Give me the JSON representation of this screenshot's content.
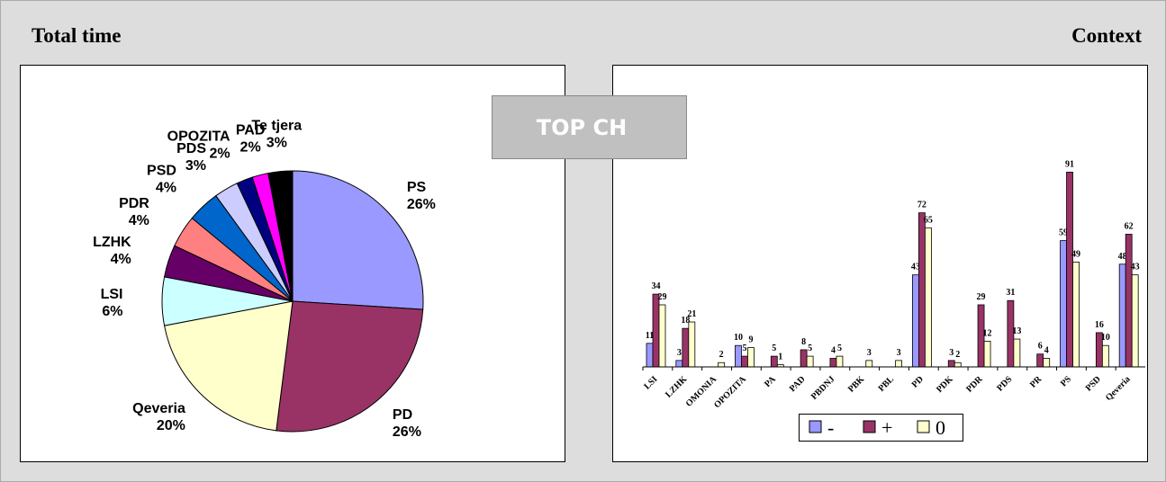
{
  "header": {
    "left": "Total time",
    "right": "Context",
    "badge": "TOP CH"
  },
  "chart_data": [
    {
      "type": "pie",
      "categories": [
        "PS",
        "PD",
        "Qeveria",
        "LSI",
        "LZHK",
        "PDR",
        "PSD",
        "PDS",
        "OPOZITA",
        "PAD",
        "Te tjera"
      ],
      "values": [
        26,
        26,
        20,
        6,
        4,
        4,
        4,
        3,
        2,
        2,
        3
      ],
      "value_labels": [
        "26%",
        "26%",
        "20%",
        "6%",
        "4%",
        "4%",
        "4%",
        "3%",
        "2%",
        "2%",
        "3%"
      ],
      "colors": [
        "#9999ff",
        "#993366",
        "#ffffcc",
        "#ccffff",
        "#660066",
        "#ff8080",
        "#0066cc",
        "#ccccff",
        "#000080",
        "#ff00ff",
        "#000000"
      ]
    },
    {
      "type": "bar",
      "categories": [
        "LSI",
        "LZHK",
        "OMONIA",
        "OPOZITA",
        "PA",
        "PAD",
        "PBDNJ",
        "PBK",
        "PBL",
        "PD",
        "PDK",
        "PDR",
        "PDS",
        "PR",
        "PS",
        "PSD",
        "Qeveria"
      ],
      "series": [
        {
          "name": "-",
          "color": "#9999ff",
          "values": [
            11,
            3,
            null,
            10,
            null,
            null,
            null,
            null,
            null,
            43,
            null,
            null,
            null,
            null,
            59,
            null,
            48
          ]
        },
        {
          "name": "+",
          "color": "#993366",
          "values": [
            34,
            18,
            null,
            5,
            5,
            8,
            4,
            null,
            null,
            72,
            3,
            29,
            31,
            6,
            91,
            16,
            62
          ]
        },
        {
          "name": "0",
          "color": "#ffffcc",
          "values": [
            29,
            21,
            2,
            9,
            1,
            5,
            5,
            3,
            3,
            65,
            2,
            12,
            13,
            4,
            49,
            10,
            43
          ]
        }
      ],
      "ylim": [
        0,
        100
      ],
      "legend": "bottom"
    }
  ]
}
